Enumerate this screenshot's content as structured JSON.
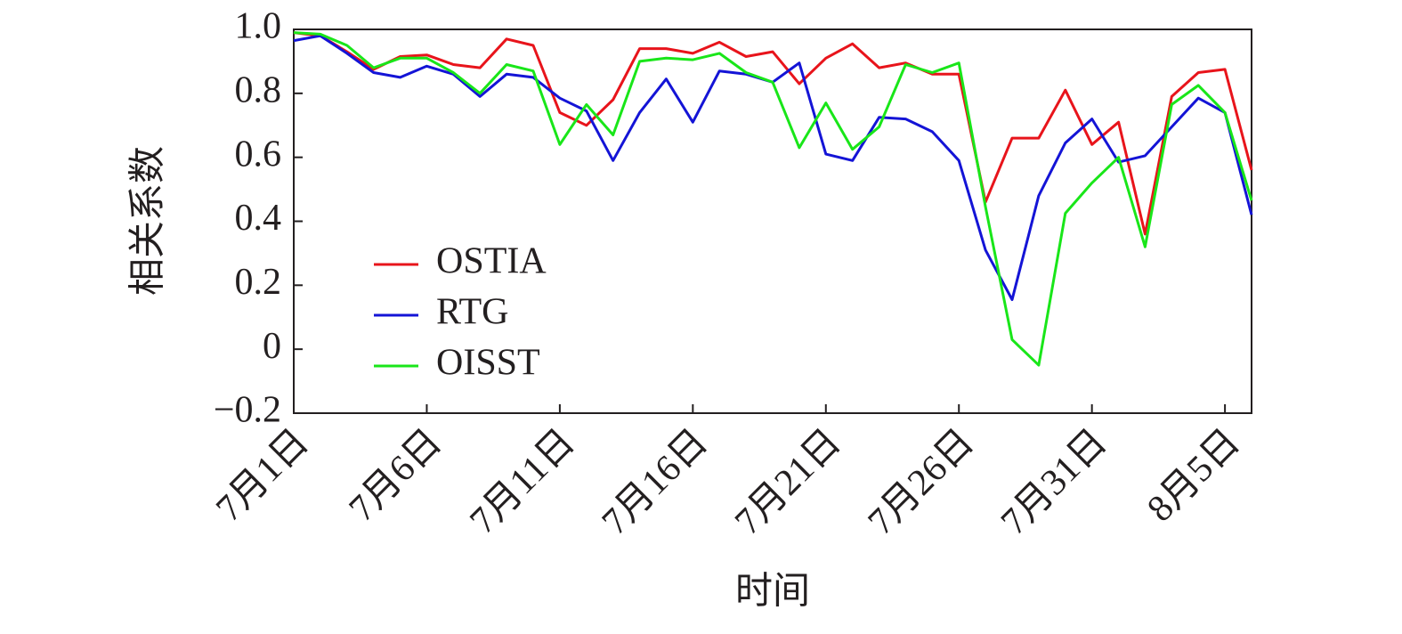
{
  "chart_data": {
    "type": "line",
    "x_label": "时间",
    "y_label": "相关系数",
    "categories": [
      "7月1日",
      null,
      null,
      null,
      null,
      "7月6日",
      null,
      null,
      null,
      null,
      "7月11日",
      null,
      null,
      null,
      null,
      "7月16日",
      null,
      null,
      null,
      null,
      "7月21日",
      null,
      null,
      null,
      null,
      "7月26日",
      null,
      null,
      null,
      null,
      "7月31日",
      null,
      null,
      null,
      null,
      "8月5日",
      null
    ],
    "series": [
      {
        "name": "OSTIA",
        "color": "#e8141b",
        "values": [
          0.99,
          0.98,
          0.93,
          0.875,
          0.915,
          0.92,
          0.89,
          0.88,
          0.97,
          0.95,
          0.74,
          0.7,
          0.78,
          0.94,
          0.94,
          0.925,
          0.96,
          0.915,
          0.93,
          0.83,
          0.91,
          0.955,
          0.88,
          0.895,
          0.86,
          0.86,
          0.46,
          0.66,
          0.66,
          0.81,
          0.64,
          0.71,
          0.36,
          0.79,
          0.865,
          0.875,
          0.56
        ]
      },
      {
        "name": "RTG",
        "color": "#1414d6",
        "values": [
          0.965,
          0.98,
          0.925,
          0.865,
          0.85,
          0.885,
          0.86,
          0.79,
          0.86,
          0.85,
          0.785,
          0.745,
          0.59,
          0.74,
          0.845,
          0.71,
          0.87,
          0.86,
          0.835,
          0.895,
          0.61,
          0.59,
          0.725,
          0.72,
          0.68,
          0.59,
          0.31,
          0.155,
          0.48,
          0.645,
          0.72,
          0.585,
          0.605,
          0.695,
          0.785,
          0.74,
          0.42
        ]
      },
      {
        "name": "OISST",
        "color": "#19e619",
        "values": [
          0.99,
          0.985,
          0.95,
          0.88,
          0.91,
          0.91,
          0.865,
          0.8,
          0.89,
          0.87,
          0.64,
          0.765,
          0.67,
          0.9,
          0.91,
          0.905,
          0.925,
          0.865,
          0.835,
          0.63,
          0.77,
          0.625,
          0.695,
          0.89,
          0.865,
          0.895,
          0.445,
          0.03,
          -0.05,
          0.425,
          0.52,
          0.6,
          0.32,
          0.765,
          0.825,
          0.74,
          0.465
        ]
      }
    ],
    "ylim": [
      -0.2,
      1.0
    ],
    "yticks": [
      {
        "value": -0.2,
        "label": "−0.2"
      },
      0,
      0.2,
      0.4,
      0.6,
      0.8,
      {
        "value": 1,
        "label": "1.0"
      }
    ],
    "grid": false,
    "legend": "left"
  }
}
